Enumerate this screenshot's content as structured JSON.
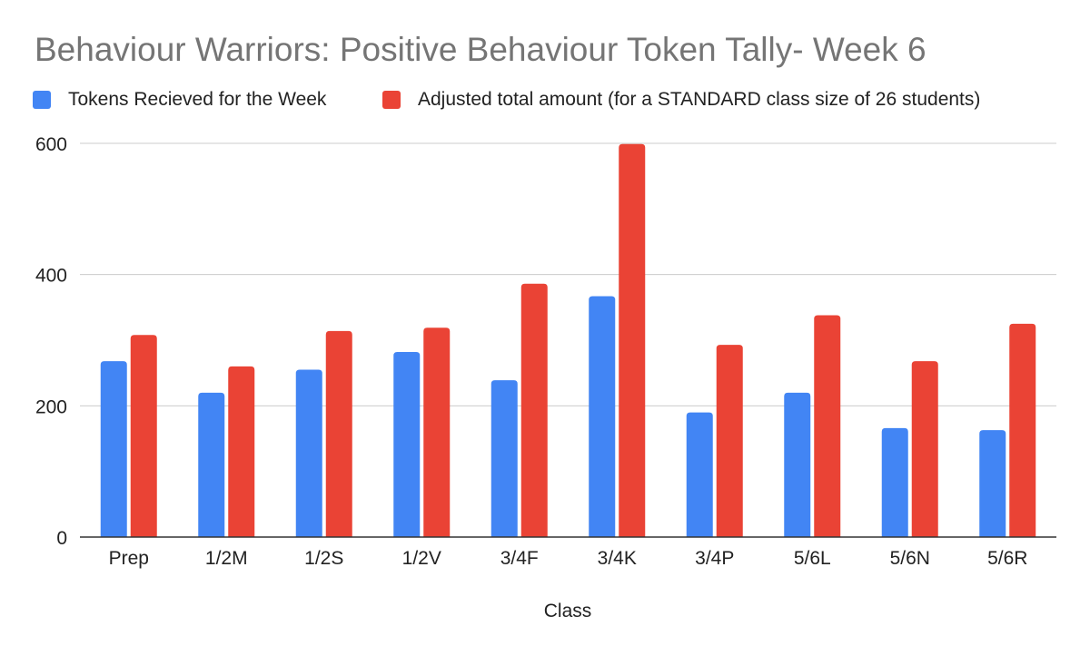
{
  "chart_data": {
    "type": "bar",
    "title": "Behaviour Warriors: Positive Behaviour Token Tally- Week 6",
    "xlabel": "Class",
    "ylabel": "",
    "categories": [
      "Prep",
      "1/2M",
      "1/2S",
      "1/2V",
      "3/4F",
      "3/4K",
      "3/4P",
      "5/6L",
      "5/6N",
      "5/6R"
    ],
    "series": [
      {
        "name": "Tokens Recieved for the Week",
        "color": "#4285f4",
        "values": [
          268,
          220,
          255,
          282,
          239,
          367,
          190,
          220,
          166,
          163
        ]
      },
      {
        "name": "Adjusted total amount (for a STANDARD class size of 26 students)",
        "color": "#ea4335",
        "values": [
          308,
          260,
          314,
          319,
          386,
          599,
          293,
          338,
          268,
          325
        ]
      }
    ],
    "yticks": [
      0,
      200,
      400,
      600
    ],
    "ylim": [
      0,
      600
    ],
    "grid": true,
    "legend_position": "top-left"
  }
}
